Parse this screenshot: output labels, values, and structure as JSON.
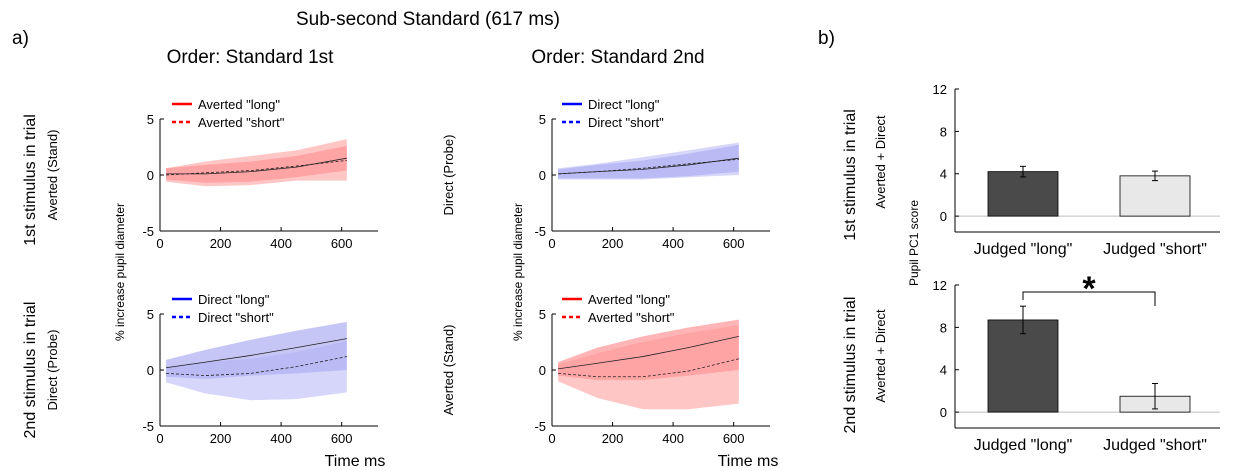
{
  "figure": {
    "title": "Sub-second Standard (617 ms)",
    "panel_a_label": "a)",
    "panel_b_label": "b)",
    "order_1_title": "Order: Standard 1st",
    "order_2_title": "Order: Standard 2nd",
    "row_1_label": "1st stimulus in trial",
    "row_2_label": "2nd stimulus in trial",
    "pupil_ylabel": "% increase pupil diameter",
    "time_xlabel": "Time ms",
    "pc1_ylabel": "Pupil PC1 score",
    "significance_marker": "*"
  },
  "chart_data": [
    {
      "type": "line",
      "position": "row 1, Standard 1st",
      "ylabel": "Averted (Stand)",
      "xlim": [
        0,
        720
      ],
      "ylim": [
        -5,
        5
      ],
      "xticks": [
        0,
        200,
        400,
        600
      ],
      "yticks": [
        -5,
        0,
        5
      ],
      "color": "#ff0000",
      "x": [
        20,
        150,
        300,
        450,
        617
      ],
      "series": [
        {
          "name": "Averted \"long\"",
          "style": "solid",
          "mean": [
            0.1,
            0.1,
            0.3,
            0.7,
            1.5
          ],
          "ci_low": [
            -0.4,
            -0.7,
            -0.6,
            -0.2,
            0.4
          ],
          "ci_high": [
            0.6,
            0.9,
            1.2,
            1.7,
            2.6
          ]
        },
        {
          "name": "Averted \"short\"",
          "style": "dashed",
          "mean": [
            0.0,
            0.2,
            0.4,
            0.8,
            1.3
          ],
          "ci_low": [
            -0.6,
            -1.0,
            -0.9,
            -0.5,
            -0.5
          ],
          "ci_high": [
            0.6,
            1.2,
            1.7,
            2.2,
            3.2
          ]
        }
      ]
    },
    {
      "type": "line",
      "position": "row 1, Standard 2nd",
      "ylabel": "Direct (Probe)",
      "xlim": [
        0,
        720
      ],
      "ylim": [
        -5,
        5
      ],
      "xticks": [
        0,
        200,
        400,
        600
      ],
      "yticks": [
        -5,
        0,
        5
      ],
      "color": "#0000ff",
      "x": [
        20,
        150,
        300,
        450,
        617
      ],
      "series": [
        {
          "name": "Direct \"long\"",
          "style": "solid",
          "mean": [
            0.1,
            0.3,
            0.5,
            0.9,
            1.5
          ],
          "ci_low": [
            -0.3,
            -0.3,
            -0.3,
            -0.1,
            0.3
          ],
          "ci_high": [
            0.5,
            0.9,
            1.3,
            1.9,
            2.7
          ]
        },
        {
          "name": "Direct \"short\"",
          "style": "dashed",
          "mean": [
            0.1,
            0.3,
            0.6,
            1.0,
            1.4
          ],
          "ci_low": [
            -0.4,
            -0.4,
            -0.4,
            -0.2,
            0.0
          ],
          "ci_high": [
            0.6,
            1.0,
            1.6,
            2.2,
            2.9
          ]
        }
      ]
    },
    {
      "type": "line",
      "position": "row 2, Standard 1st",
      "ylabel": "Direct (Probe)",
      "xlim": [
        0,
        720
      ],
      "ylim": [
        -5,
        5
      ],
      "xticks": [
        0,
        200,
        400,
        600
      ],
      "yticks": [
        -5,
        0,
        5
      ],
      "color": "#0000ff",
      "x": [
        20,
        150,
        300,
        450,
        617
      ],
      "series": [
        {
          "name": "Direct \"long\"",
          "style": "solid",
          "mean": [
            0.2,
            0.7,
            1.3,
            2.0,
            2.8
          ],
          "ci_low": [
            -0.6,
            -0.8,
            -0.5,
            -0.3,
            0.0
          ],
          "ci_high": [
            0.9,
            1.8,
            2.7,
            3.5,
            4.3
          ]
        },
        {
          "name": "Direct \"short\"",
          "style": "dashed",
          "mean": [
            -0.3,
            -0.5,
            -0.3,
            0.3,
            1.2
          ],
          "ci_low": [
            -1.1,
            -2.1,
            -2.7,
            -2.6,
            -2.0
          ],
          "ci_high": [
            0.3,
            0.7,
            1.0,
            1.6,
            2.6
          ]
        }
      ]
    },
    {
      "type": "line",
      "position": "row 2, Standard 2nd",
      "ylabel": "Averted (Stand)",
      "xlim": [
        0,
        720
      ],
      "ylim": [
        -5,
        5
      ],
      "xticks": [
        0,
        200,
        400,
        600
      ],
      "yticks": [
        -5,
        0,
        5
      ],
      "color": "#ff0000",
      "x": [
        20,
        150,
        300,
        450,
        617
      ],
      "series": [
        {
          "name": "Averted \"long\"",
          "style": "solid",
          "mean": [
            0.1,
            0.6,
            1.2,
            2.0,
            3.0
          ],
          "ci_low": [
            -0.5,
            -0.9,
            -0.9,
            -0.5,
            0.0
          ],
          "ci_high": [
            0.7,
            2.0,
            3.0,
            3.8,
            4.5
          ]
        },
        {
          "name": "Averted \"short\"",
          "style": "dashed",
          "mean": [
            -0.3,
            -0.6,
            -0.6,
            -0.1,
            1.0
          ],
          "ci_low": [
            -1.0,
            -2.5,
            -3.5,
            -3.5,
            -3.0
          ],
          "ci_high": [
            0.5,
            1.5,
            2.5,
            3.3,
            4.0
          ]
        }
      ]
    },
    {
      "type": "bar",
      "position": "panel b, top",
      "ylabel": "Averted + Direct",
      "row_label": "1st stimulus in trial",
      "categories": [
        "Judged \"long\"",
        "Judged \"short\""
      ],
      "values": [
        4.2,
        3.8
      ],
      "errors": [
        0.5,
        0.45
      ],
      "colors": [
        "#4a4a4a",
        "#e8e8e8"
      ],
      "ylim": [
        -1.5,
        12
      ],
      "yticks": [
        0,
        4,
        8,
        12
      ]
    },
    {
      "type": "bar",
      "position": "panel b, bottom",
      "ylabel": "Averted + Direct",
      "row_label": "2nd stimulus in trial",
      "categories": [
        "Judged \"long\"",
        "Judged \"short\""
      ],
      "values": [
        8.7,
        1.5
      ],
      "errors": [
        1.3,
        1.2
      ],
      "colors": [
        "#4a4a4a",
        "#e8e8e8"
      ],
      "ylim": [
        -1.5,
        12
      ],
      "yticks": [
        0,
        4,
        8,
        12
      ],
      "significance": "*"
    }
  ]
}
